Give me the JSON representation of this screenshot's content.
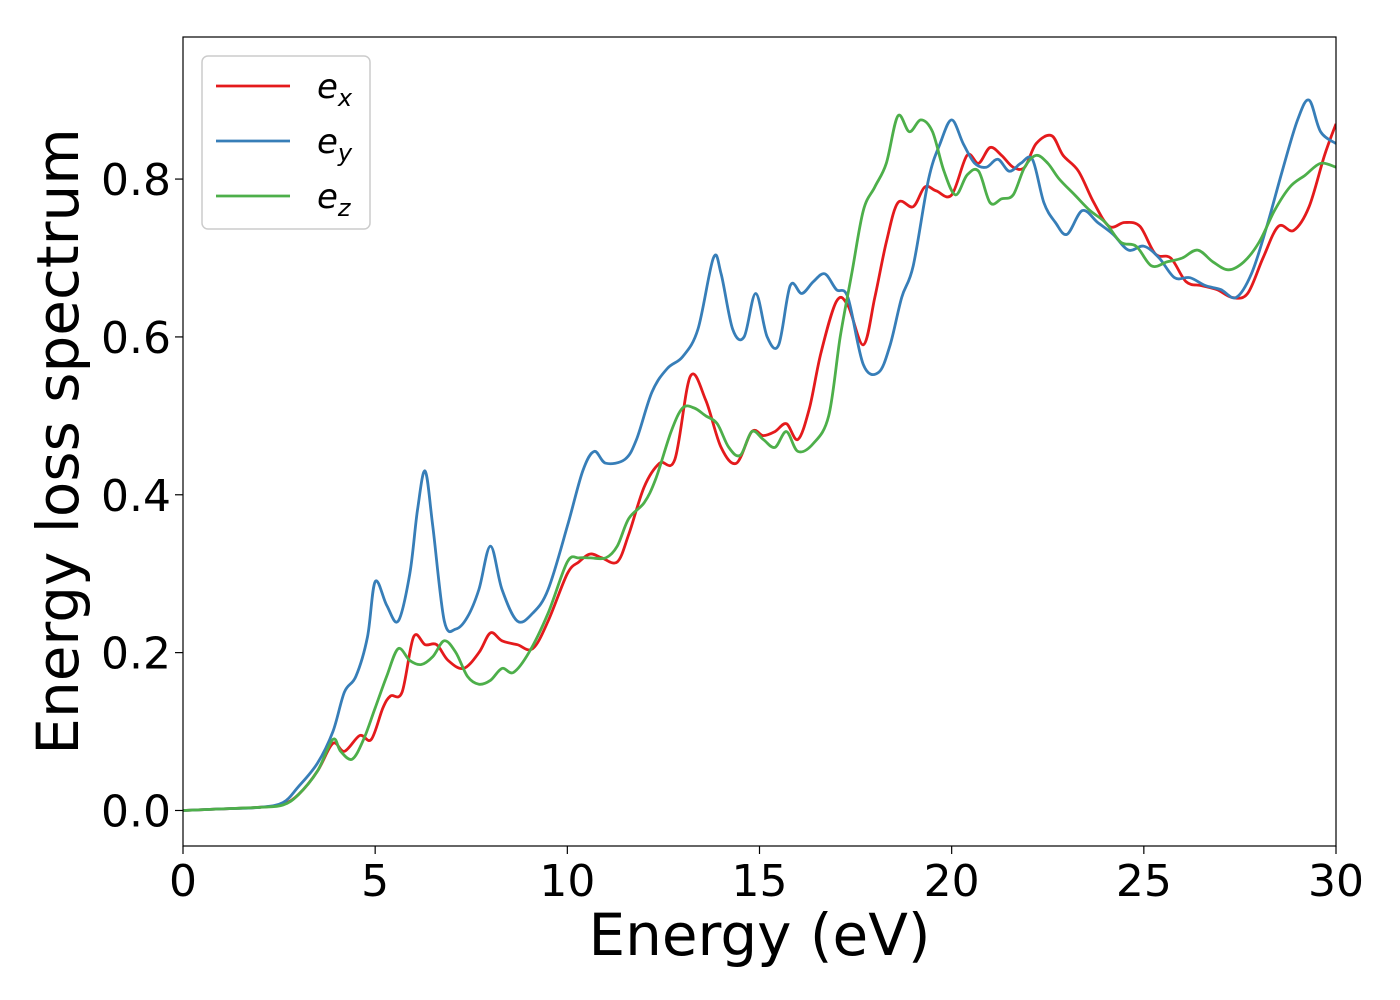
{
  "chart_data": {
    "type": "line",
    "xlabel": "Energy (eV)",
    "ylabel": "Energy loss spectrum",
    "xlim": [
      0,
      30
    ],
    "ylim": [
      -0.045,
      0.98
    ],
    "xticks": [
      0,
      5,
      10,
      15,
      20,
      25,
      30
    ],
    "yticks": [
      0.0,
      0.2,
      0.4,
      0.6,
      0.8
    ],
    "xtick_labels": [
      "0",
      "5",
      "10",
      "15",
      "20",
      "25",
      "30"
    ],
    "ytick_labels": [
      "0.0",
      "0.2",
      "0.4",
      "0.6",
      "0.8"
    ],
    "grid": false,
    "legend_position": "top-left",
    "series": [
      {
        "name": "e_x",
        "legend_base": "e",
        "legend_sub": "x",
        "color": "#e41a1c",
        "x": [
          0,
          1,
          2,
          2.6,
          3.0,
          3.5,
          3.9,
          4.2,
          4.6,
          4.9,
          5.2,
          5.4,
          5.7,
          6.0,
          6.3,
          6.6,
          6.9,
          7.3,
          7.7,
          8.0,
          8.3,
          8.7,
          9.1,
          9.5,
          10.0,
          10.3,
          10.6,
          10.9,
          11.3,
          11.6,
          12.0,
          12.4,
          12.8,
          13.2,
          13.6,
          14.0,
          14.4,
          14.8,
          15.1,
          15.4,
          15.7,
          16.0,
          16.3,
          16.6,
          17.0,
          17.3,
          17.7,
          18.0,
          18.3,
          18.6,
          19.0,
          19.3,
          19.6,
          20.0,
          20.4,
          20.7,
          21.0,
          21.3,
          21.6,
          21.9,
          22.2,
          22.6,
          22.9,
          23.3,
          23.7,
          24.1,
          24.5,
          24.9,
          25.3,
          25.7,
          26.1,
          26.5,
          26.9,
          27.3,
          27.7,
          28.1,
          28.5,
          28.9,
          29.3,
          29.7,
          30.0
        ],
        "values": [
          0.0,
          0.002,
          0.004,
          0.008,
          0.02,
          0.05,
          0.085,
          0.075,
          0.095,
          0.09,
          0.13,
          0.145,
          0.15,
          0.22,
          0.21,
          0.21,
          0.19,
          0.18,
          0.2,
          0.225,
          0.215,
          0.21,
          0.205,
          0.24,
          0.3,
          0.315,
          0.325,
          0.32,
          0.315,
          0.35,
          0.41,
          0.44,
          0.445,
          0.55,
          0.52,
          0.46,
          0.44,
          0.48,
          0.475,
          0.48,
          0.49,
          0.47,
          0.51,
          0.58,
          0.645,
          0.64,
          0.59,
          0.65,
          0.72,
          0.77,
          0.765,
          0.79,
          0.785,
          0.78,
          0.83,
          0.82,
          0.84,
          0.83,
          0.815,
          0.815,
          0.845,
          0.855,
          0.83,
          0.81,
          0.77,
          0.74,
          0.745,
          0.74,
          0.705,
          0.7,
          0.67,
          0.665,
          0.66,
          0.65,
          0.655,
          0.7,
          0.74,
          0.735,
          0.765,
          0.83,
          0.87
        ]
      },
      {
        "name": "e_y",
        "legend_base": "e",
        "legend_sub": "y",
        "color": "#377eb8",
        "x": [
          0,
          1,
          2,
          2.6,
          3.0,
          3.5,
          3.9,
          4.2,
          4.5,
          4.8,
          5.0,
          5.3,
          5.6,
          5.9,
          6.1,
          6.3,
          6.5,
          6.8,
          7.1,
          7.4,
          7.7,
          8.0,
          8.3,
          8.7,
          9.1,
          9.5,
          10.0,
          10.4,
          10.7,
          11.0,
          11.5,
          11.8,
          12.2,
          12.6,
          13.0,
          13.4,
          13.8,
          14.0,
          14.3,
          14.6,
          14.9,
          15.2,
          15.5,
          15.8,
          16.1,
          16.4,
          16.7,
          17.0,
          17.3,
          17.7,
          18.1,
          18.4,
          18.7,
          19.0,
          19.4,
          19.7,
          20.0,
          20.3,
          20.6,
          20.9,
          21.2,
          21.5,
          21.8,
          22.1,
          22.4,
          22.7,
          23.0,
          23.4,
          23.8,
          24.2,
          24.6,
          25.0,
          25.4,
          25.8,
          26.2,
          26.6,
          27.0,
          27.4,
          27.8,
          28.2,
          28.6,
          29.0,
          29.3,
          29.6,
          30.0
        ],
        "values": [
          0.0,
          0.002,
          0.004,
          0.01,
          0.03,
          0.06,
          0.1,
          0.15,
          0.17,
          0.22,
          0.29,
          0.26,
          0.24,
          0.3,
          0.38,
          0.43,
          0.36,
          0.24,
          0.23,
          0.245,
          0.28,
          0.335,
          0.28,
          0.24,
          0.25,
          0.28,
          0.36,
          0.43,
          0.455,
          0.44,
          0.445,
          0.47,
          0.53,
          0.56,
          0.575,
          0.61,
          0.7,
          0.68,
          0.61,
          0.6,
          0.655,
          0.6,
          0.59,
          0.665,
          0.655,
          0.67,
          0.68,
          0.66,
          0.65,
          0.565,
          0.555,
          0.59,
          0.65,
          0.69,
          0.8,
          0.845,
          0.875,
          0.845,
          0.82,
          0.815,
          0.825,
          0.81,
          0.82,
          0.825,
          0.77,
          0.745,
          0.73,
          0.76,
          0.745,
          0.73,
          0.71,
          0.715,
          0.7,
          0.675,
          0.675,
          0.665,
          0.66,
          0.65,
          0.68,
          0.74,
          0.81,
          0.875,
          0.9,
          0.86,
          0.845
        ]
      },
      {
        "name": "e_z",
        "legend_base": "e",
        "legend_sub": "z",
        "color": "#4daf4a",
        "x": [
          0,
          1,
          2,
          2.6,
          3.0,
          3.5,
          3.9,
          4.1,
          4.4,
          4.7,
          5.0,
          5.3,
          5.6,
          5.9,
          6.2,
          6.5,
          6.8,
          7.1,
          7.4,
          7.7,
          8.0,
          8.3,
          8.6,
          9.0,
          9.5,
          10.0,
          10.3,
          10.6,
          11.0,
          11.3,
          11.6,
          12.0,
          12.3,
          12.7,
          13.0,
          13.3,
          13.6,
          13.9,
          14.2,
          14.5,
          14.8,
          15.1,
          15.4,
          15.7,
          16.0,
          16.4,
          16.8,
          17.1,
          17.4,
          17.7,
          18.0,
          18.3,
          18.6,
          18.9,
          19.2,
          19.5,
          19.8,
          20.1,
          20.4,
          20.7,
          21.0,
          21.3,
          21.6,
          21.9,
          22.2,
          22.5,
          22.8,
          23.2,
          23.6,
          24.0,
          24.4,
          24.8,
          25.2,
          25.6,
          26.0,
          26.4,
          26.8,
          27.2,
          27.6,
          28.0,
          28.4,
          28.8,
          29.2,
          29.6,
          30.0
        ],
        "values": [
          0.0,
          0.002,
          0.004,
          0.007,
          0.02,
          0.05,
          0.09,
          0.075,
          0.065,
          0.09,
          0.13,
          0.17,
          0.205,
          0.19,
          0.185,
          0.195,
          0.215,
          0.2,
          0.17,
          0.16,
          0.165,
          0.18,
          0.175,
          0.2,
          0.25,
          0.315,
          0.32,
          0.32,
          0.32,
          0.335,
          0.37,
          0.39,
          0.42,
          0.48,
          0.51,
          0.51,
          0.5,
          0.49,
          0.46,
          0.45,
          0.48,
          0.47,
          0.46,
          0.48,
          0.455,
          0.465,
          0.5,
          0.6,
          0.68,
          0.76,
          0.79,
          0.82,
          0.88,
          0.86,
          0.875,
          0.86,
          0.81,
          0.78,
          0.805,
          0.81,
          0.77,
          0.775,
          0.78,
          0.815,
          0.83,
          0.82,
          0.8,
          0.78,
          0.76,
          0.745,
          0.72,
          0.715,
          0.69,
          0.695,
          0.7,
          0.71,
          0.695,
          0.685,
          0.695,
          0.72,
          0.76,
          0.79,
          0.805,
          0.82,
          0.815
        ]
      }
    ]
  }
}
